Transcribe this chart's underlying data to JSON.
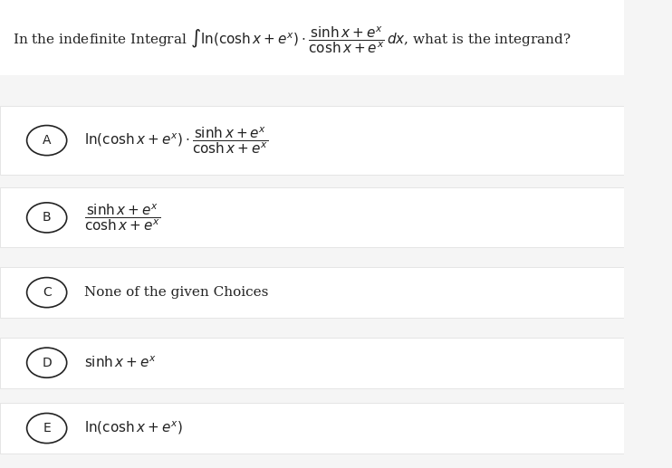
{
  "background_color": "#f5f5f5",
  "white_color": "#ffffff",
  "text_color": "#222222",
  "title_text": "In the indefinite Integral $\\int \\ln(\\cosh x + e^x)\\cdot\\dfrac{\\sinh x + e^x}{\\cosh x + e^x}\\,dx$, what is the integrand?",
  "options": [
    {
      "label": "A",
      "text": "$\\ln(\\cosh x + e^x)\\cdot\\dfrac{\\sinh x + e^x}{\\cosh x + e^x}$"
    },
    {
      "label": "B",
      "text": "$\\dfrac{\\sinh x + e^x}{\\cosh x + e^x}$"
    },
    {
      "label": "C",
      "text": "None of the given Choices"
    },
    {
      "label": "D",
      "text": "$\\sinh x + e^x$"
    },
    {
      "label": "E",
      "text": "$\\ln(\\cosh x + e^x)$"
    }
  ],
  "figsize": [
    7.42,
    5.17
  ],
  "dpi": 100
}
